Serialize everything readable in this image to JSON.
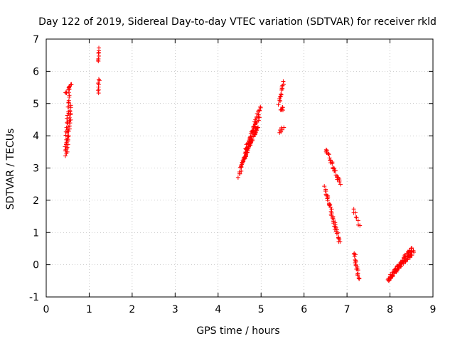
{
  "chart_data": {
    "type": "scatter",
    "title": "Day 122 of 2019, Sidereal Day-to-day VTEC variation (SDTVAR) for receiver rkld",
    "xlabel": "GPS time / hours",
    "ylabel": "SDTVAR / TECUs",
    "xlim": [
      0,
      9
    ],
    "ylim": [
      -1,
      7
    ],
    "xticks": [
      0,
      1,
      2,
      3,
      4,
      5,
      6,
      7,
      8,
      9
    ],
    "yticks": [
      -1,
      0,
      1,
      2,
      3,
      4,
      5,
      6,
      7
    ],
    "grid": true,
    "marker": "+",
    "color": "#ff0000",
    "segments": [
      {
        "x0": 0.44,
        "x1": 0.54,
        "y0": 3.4,
        "y1": 5.5,
        "n": 30
      },
      {
        "x0": 0.48,
        "x1": 0.58,
        "y0": 3.5,
        "y1": 4.9,
        "n": 25
      },
      {
        "x0": 0.46,
        "x1": 0.58,
        "y0": 5.3,
        "y1": 5.6,
        "n": 10
      },
      {
        "x0": 1.2,
        "x1": 1.24,
        "y0": 6.3,
        "y1": 6.72,
        "n": 8
      },
      {
        "x0": 1.2,
        "x1": 1.24,
        "y0": 5.3,
        "y1": 5.8,
        "n": 8
      },
      {
        "x0": 4.48,
        "x1": 4.98,
        "y0": 2.75,
        "y1": 4.9,
        "n": 50
      },
      {
        "x0": 4.55,
        "x1": 4.92,
        "y0": 3.1,
        "y1": 4.3,
        "n": 40
      },
      {
        "x0": 4.62,
        "x1": 4.95,
        "y0": 3.5,
        "y1": 4.6,
        "n": 30
      },
      {
        "x0": 5.42,
        "x1": 5.52,
        "y0": 5.0,
        "y1": 5.65,
        "n": 15
      },
      {
        "x0": 5.45,
        "x1": 5.5,
        "y0": 4.8,
        "y1": 4.85,
        "n": 6
      },
      {
        "x0": 5.44,
        "x1": 5.52,
        "y0": 4.1,
        "y1": 4.28,
        "n": 6
      },
      {
        "x0": 6.5,
        "x1": 6.85,
        "y0": 3.6,
        "y1": 2.5,
        "n": 30
      },
      {
        "x0": 6.48,
        "x1": 6.82,
        "y0": 2.4,
        "y1": 0.7,
        "n": 45
      },
      {
        "x0": 7.15,
        "x1": 7.28,
        "y0": 1.7,
        "y1": 1.2,
        "n": 8
      },
      {
        "x0": 7.17,
        "x1": 7.27,
        "y0": 0.35,
        "y1": -0.45,
        "n": 20
      },
      {
        "x0": 7.95,
        "x1": 8.5,
        "y0": -0.5,
        "y1": 0.5,
        "n": 55
      },
      {
        "x0": 8.0,
        "x1": 8.55,
        "y0": -0.35,
        "y1": 0.4,
        "n": 50
      }
    ]
  }
}
